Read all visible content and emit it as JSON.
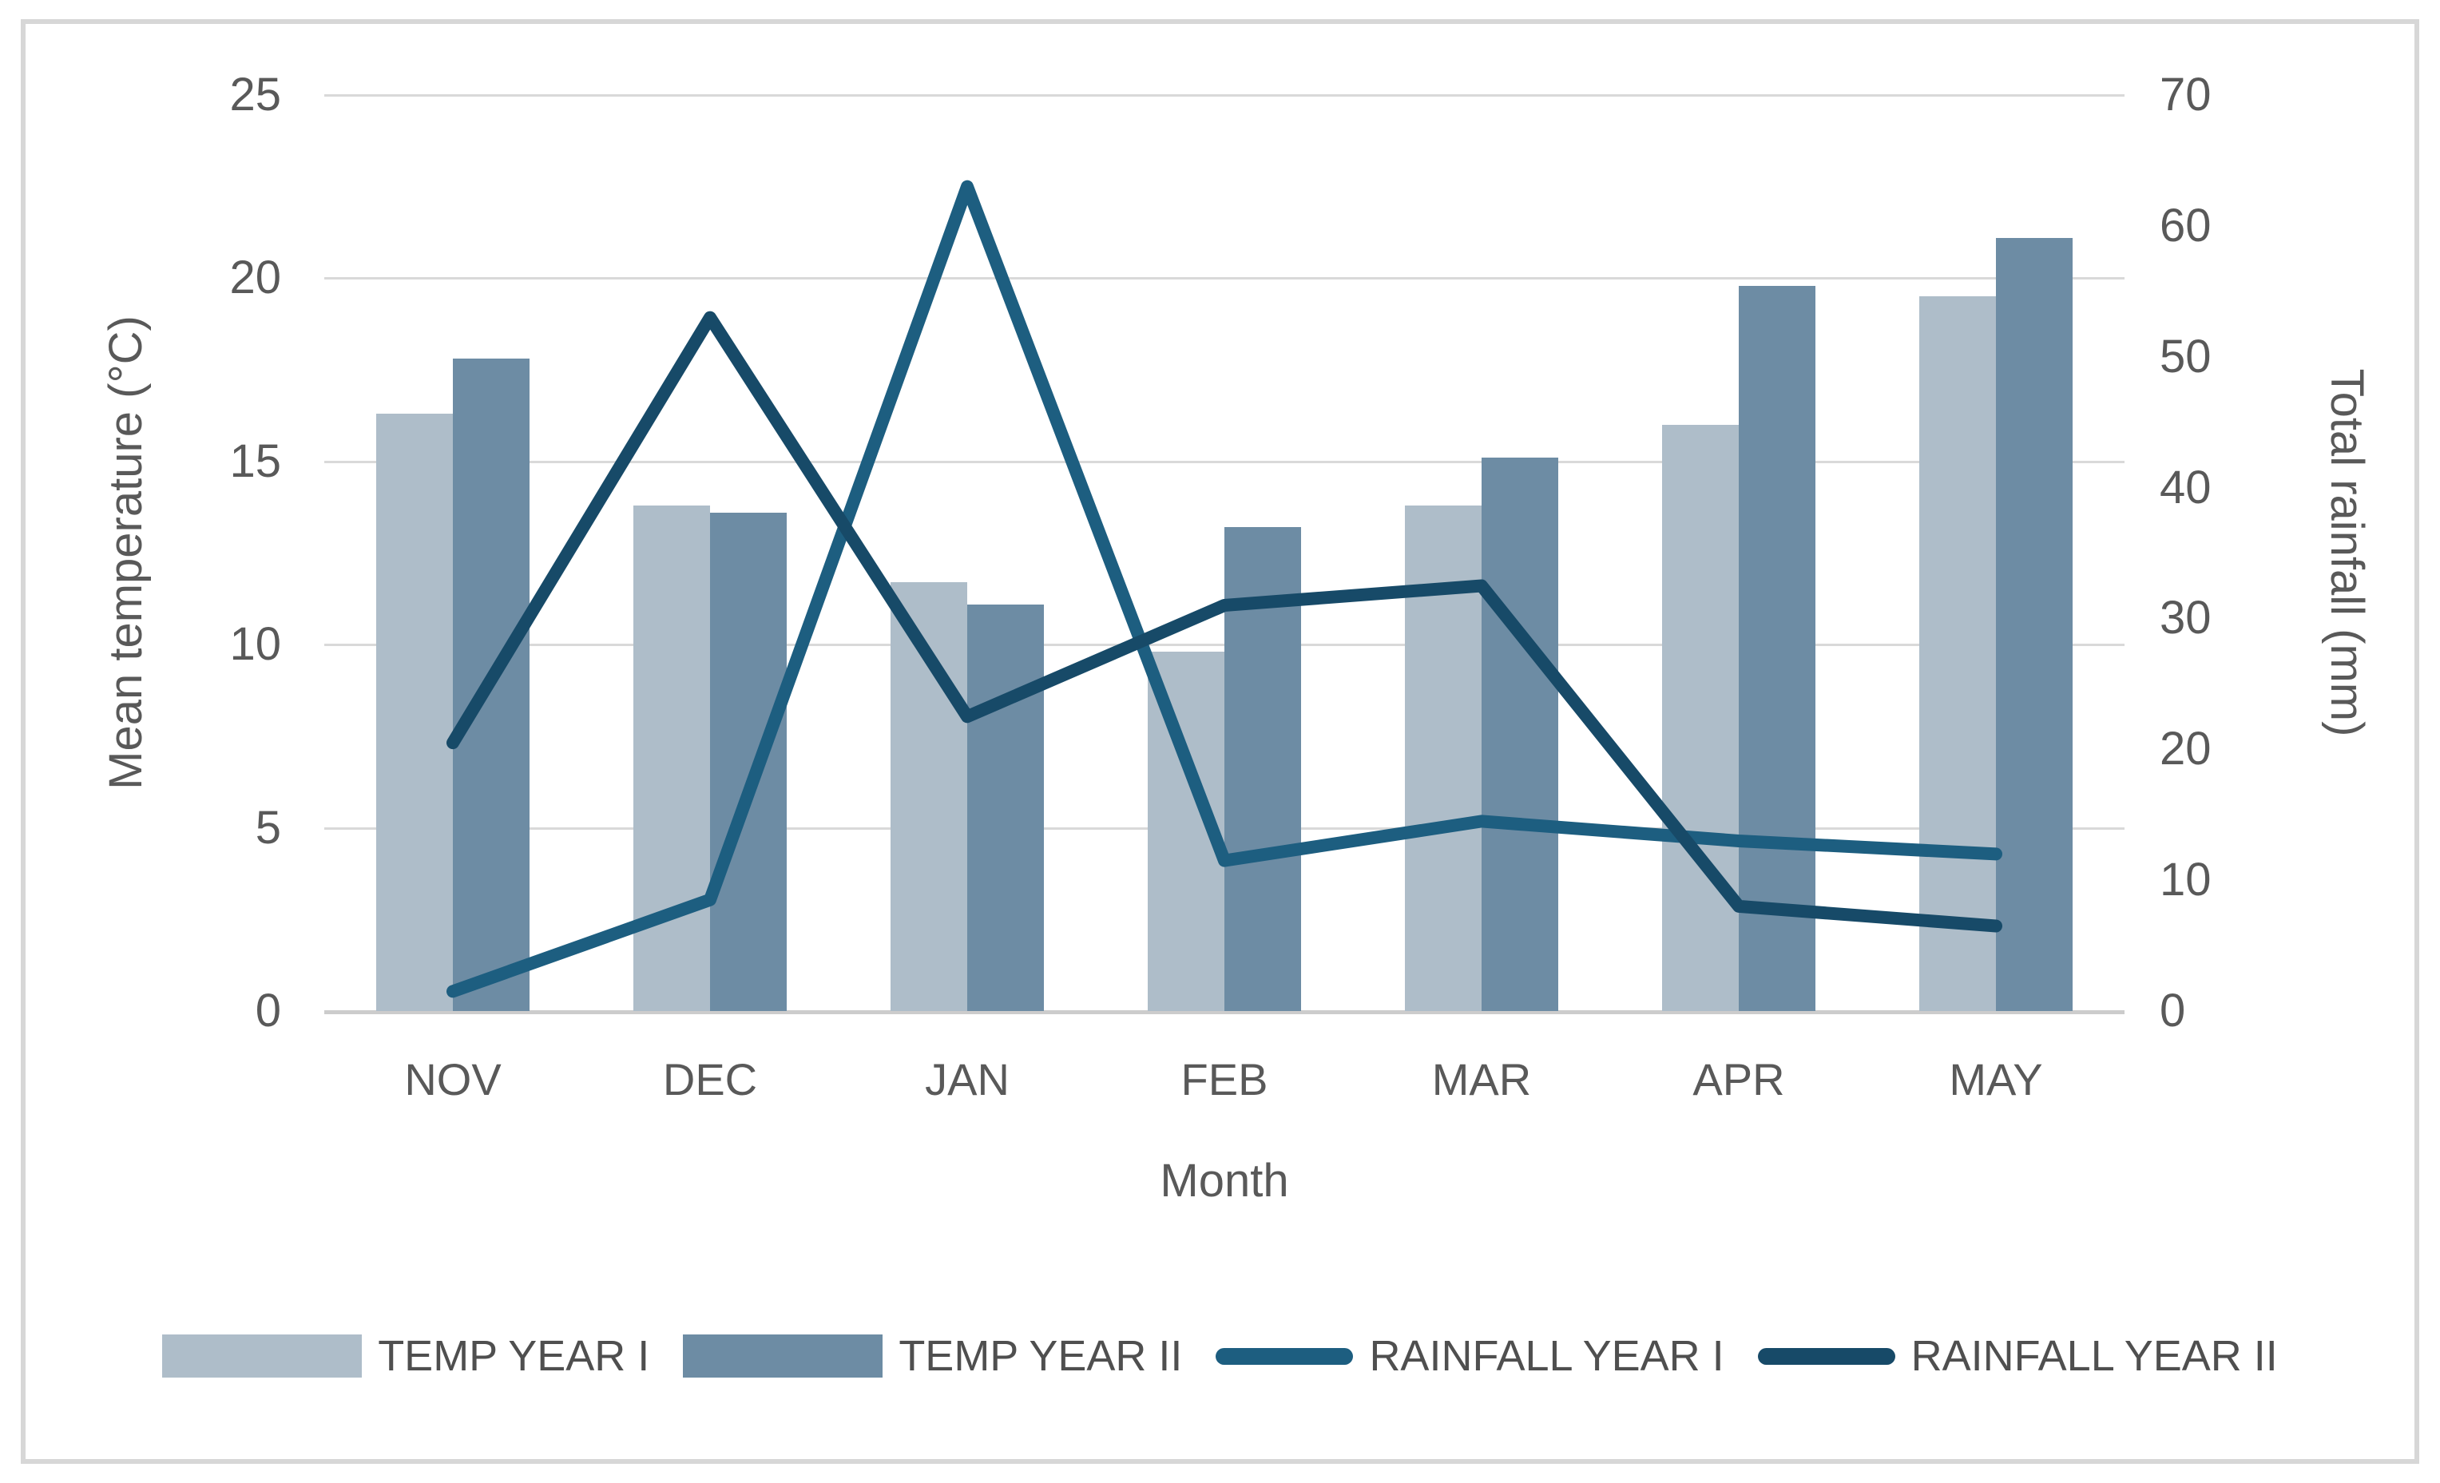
{
  "chart_data": {
    "type": "combo-bar-line",
    "categories": [
      "NOV",
      "DEC",
      "JAN",
      "FEB",
      "MAR",
      "APR",
      "MAY"
    ],
    "xlabel": "Month",
    "left_axis": {
      "label": "Mean temperature (°C)",
      "range": [
        0,
        25
      ],
      "tick_step": 5,
      "ticks": [
        0,
        5,
        10,
        15,
        20,
        25
      ]
    },
    "right_axis": {
      "label": "Total rainfall (mm)",
      "range": [
        0,
        70
      ],
      "tick_step": 10,
      "ticks": [
        0,
        10,
        20,
        30,
        40,
        50,
        60,
        70
      ]
    },
    "grid": "horizontal",
    "legend_position": "bottom",
    "series": [
      {
        "name": "TEMP YEAR I",
        "type": "bar",
        "axis": "left",
        "color": "#AEBDC9",
        "values": [
          16.3,
          13.8,
          11.7,
          9.8,
          13.8,
          16.0,
          19.5
        ]
      },
      {
        "name": "TEMP YEAR II",
        "type": "bar",
        "axis": "left",
        "color": "#6D8CA4",
        "values": [
          17.8,
          13.6,
          11.1,
          13.2,
          15.1,
          19.8,
          21.1
        ]
      },
      {
        "name": "RAINFALL YEAR I",
        "type": "line",
        "axis": "right",
        "color": "#1D5E80",
        "values": [
          1.5,
          8.5,
          63,
          11.5,
          14.5,
          13,
          12
        ]
      },
      {
        "name": "RAINFALL YEAR II",
        "type": "line",
        "axis": "right",
        "color": "#174A68",
        "values": [
          20.5,
          53,
          22.5,
          31,
          32.5,
          8,
          6.5
        ]
      }
    ],
    "colors": {
      "gridline": "#D9D9D9",
      "axis_text": "#595959",
      "frame_border": "#D7D7D7",
      "background": "#FFFFFF"
    }
  }
}
